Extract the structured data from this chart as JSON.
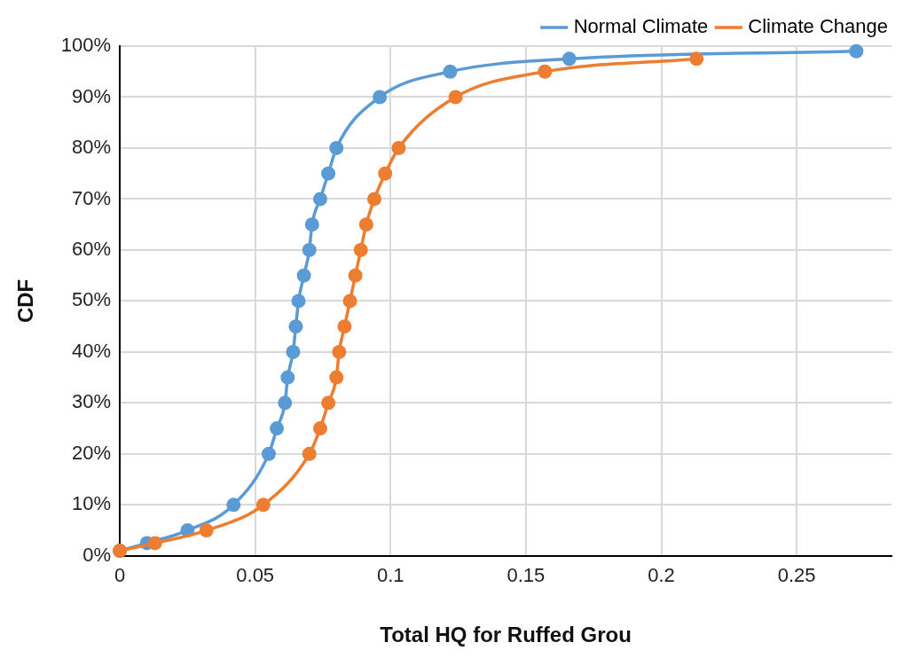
{
  "chart_data": {
    "type": "line",
    "xlabel": "Total HQ for Ruffed Grou",
    "ylabel": "CDF",
    "xlim": [
      0,
      0.285
    ],
    "xticks": [
      0,
      0.05,
      0.1,
      0.15,
      0.2,
      0.25
    ],
    "ylim": [
      0,
      100
    ],
    "yticks": [
      {
        "value": 0,
        "label": "0%"
      },
      {
        "value": 10,
        "label": "10%"
      },
      {
        "value": 20,
        "label": "20%"
      },
      {
        "value": 30,
        "label": "30%"
      },
      {
        "value": 40,
        "label": "40%"
      },
      {
        "value": 50,
        "label": "50%"
      },
      {
        "value": 60,
        "label": "60%"
      },
      {
        "value": 70,
        "label": "70%"
      },
      {
        "value": 80,
        "label": "80%"
      },
      {
        "value": 90,
        "label": "90%"
      },
      {
        "value": 100,
        "label": "100%"
      }
    ],
    "grid": true,
    "legend": "top right",
    "marker": "circle",
    "line_style": "solid",
    "series": [
      {
        "name": "Normal Climate",
        "color": "#5b9bd5",
        "x": [
          0,
          0.01,
          0.025,
          0.042,
          0.055,
          0.058,
          0.061,
          0.062,
          0.064,
          0.065,
          0.066,
          0.068,
          0.07,
          0.071,
          0.074,
          0.077,
          0.08,
          0.096,
          0.122,
          0.166,
          0.272
        ],
        "values": [
          1,
          2.5,
          5,
          10,
          20,
          25,
          30,
          35,
          40,
          45,
          50,
          55,
          60,
          65,
          70,
          75,
          80,
          90,
          95,
          97.5,
          99
        ]
      },
      {
        "name": "Climate Change",
        "color": "#ed7d31",
        "x": [
          0,
          0.013,
          0.032,
          0.053,
          0.07,
          0.074,
          0.077,
          0.08,
          0.081,
          0.083,
          0.085,
          0.087,
          0.089,
          0.091,
          0.094,
          0.098,
          0.103,
          0.124,
          0.157,
          0.213
        ],
        "values": [
          1,
          2.5,
          5,
          10,
          20,
          25,
          30,
          35,
          40,
          45,
          50,
          55,
          60,
          65,
          70,
          75,
          80,
          90,
          95,
          97.5
        ]
      }
    ]
  }
}
